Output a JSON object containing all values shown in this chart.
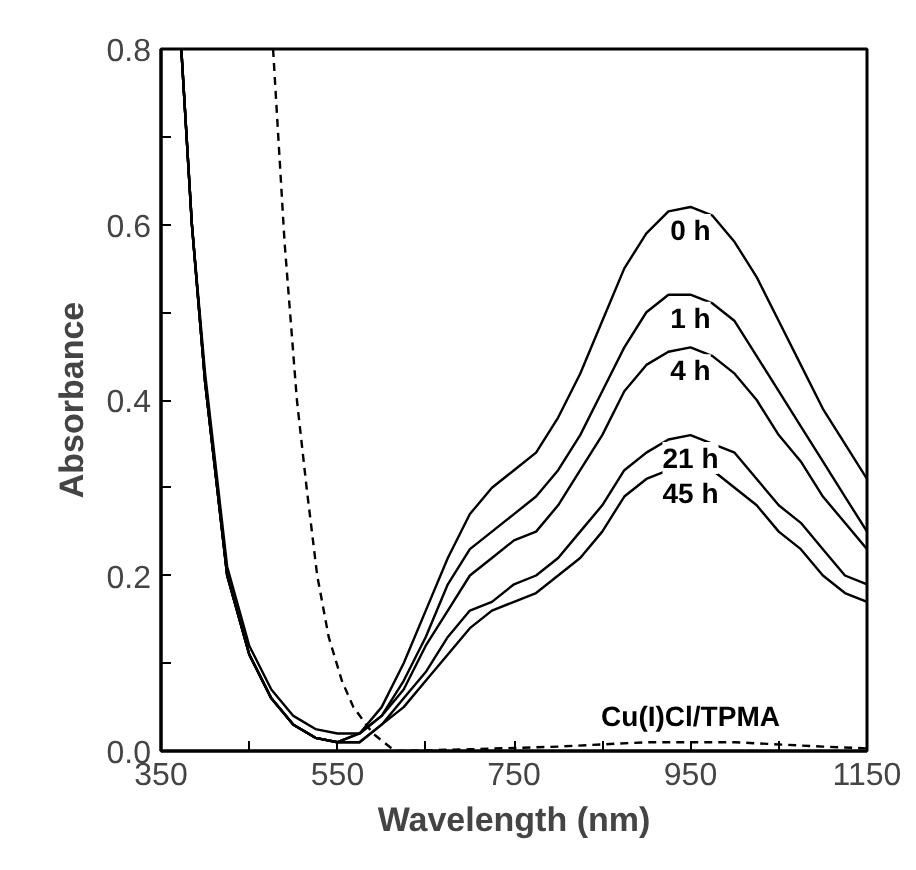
{
  "chart_data": {
    "type": "line",
    "xlabel": "Wavelength (nm)",
    "ylabel": "Absorbance",
    "xlim": [
      350,
      1150
    ],
    "ylim": [
      0,
      0.8
    ],
    "xticks": [
      350,
      {
        "value": 450,
        "label": null
      },
      550,
      {
        "value": 650,
        "label": null
      },
      750,
      {
        "value": 850,
        "label": null
      },
      950,
      {
        "value": 1050,
        "label": null
      },
      1150
    ],
    "yticks": [
      {
        "value": 0,
        "label": "0.0"
      },
      {
        "value": 0.1,
        "label": null
      },
      0.2,
      {
        "value": 0.3,
        "label": null
      },
      0.4,
      {
        "value": 0.5,
        "label": null
      },
      0.6,
      {
        "value": 0.7,
        "label": null
      },
      0.8
    ],
    "grid": false,
    "marker": "none",
    "x": [
      373,
      385,
      400,
      425,
      450,
      475,
      500,
      525,
      550,
      575,
      600,
      625,
      650,
      675,
      700,
      725,
      750,
      775,
      800,
      825,
      850,
      875,
      900,
      925,
      950,
      975,
      1000,
      1025,
      1050,
      1075,
      1100,
      1125,
      1150
    ],
    "series": [
      {
        "name": "0 h",
        "color": "#000000",
        "line_style": "solid",
        "values": [
          0.8,
          0.6,
          0.43,
          0.21,
          0.12,
          0.07,
          0.04,
          0.025,
          0.02,
          0.02,
          0.05,
          0.1,
          0.16,
          0.22,
          0.27,
          0.3,
          0.32,
          0.34,
          0.38,
          0.43,
          0.49,
          0.55,
          0.59,
          0.615,
          0.62,
          0.61,
          0.58,
          0.54,
          0.49,
          0.44,
          0.39,
          0.35,
          0.31
        ]
      },
      {
        "name": "1 h",
        "color": "#000000",
        "line_style": "solid",
        "values": [
          0.8,
          0.6,
          0.42,
          0.2,
          0.11,
          0.06,
          0.03,
          0.015,
          0.01,
          0.02,
          0.04,
          0.08,
          0.13,
          0.19,
          0.23,
          0.25,
          0.27,
          0.29,
          0.32,
          0.36,
          0.41,
          0.46,
          0.5,
          0.52,
          0.52,
          0.51,
          0.49,
          0.45,
          0.41,
          0.37,
          0.33,
          0.29,
          0.25
        ]
      },
      {
        "name": "4 h",
        "color": "#000000",
        "line_style": "solid",
        "values": [
          0.8,
          0.6,
          0.42,
          0.2,
          0.11,
          0.06,
          0.03,
          0.015,
          0.01,
          0.02,
          0.04,
          0.07,
          0.12,
          0.16,
          0.2,
          0.22,
          0.24,
          0.25,
          0.28,
          0.32,
          0.36,
          0.41,
          0.44,
          0.455,
          0.46,
          0.45,
          0.43,
          0.4,
          0.36,
          0.33,
          0.29,
          0.26,
          0.23
        ]
      },
      {
        "name": "21 h",
        "color": "#000000",
        "line_style": "solid",
        "values": [
          0.8,
          0.6,
          0.42,
          0.2,
          0.11,
          0.06,
          0.03,
          0.015,
          0.01,
          0.01,
          0.03,
          0.06,
          0.09,
          0.13,
          0.16,
          0.17,
          0.19,
          0.2,
          0.22,
          0.25,
          0.28,
          0.32,
          0.34,
          0.355,
          0.36,
          0.35,
          0.34,
          0.31,
          0.28,
          0.26,
          0.23,
          0.2,
          0.19
        ]
      },
      {
        "name": "45 h",
        "color": "#000000",
        "line_style": "solid",
        "values": [
          0.8,
          0.6,
          0.42,
          0.2,
          0.11,
          0.06,
          0.03,
          0.015,
          0.01,
          0.01,
          0.03,
          0.05,
          0.08,
          0.11,
          0.14,
          0.16,
          0.17,
          0.18,
          0.2,
          0.22,
          0.25,
          0.29,
          0.31,
          0.32,
          0.32,
          0.32,
          0.3,
          0.28,
          0.25,
          0.23,
          0.2,
          0.18,
          0.17
        ]
      },
      {
        "name": "Cu(I)Cl/TPMA",
        "color": "#000000",
        "line_style": "dashed",
        "x": [
          477,
          490,
          504,
          515,
          527,
          540,
          555,
          568,
          590,
          615,
          700,
          800,
          900,
          950,
          1000,
          1100,
          1150
        ],
        "values": [
          0.8,
          0.58,
          0.4,
          0.3,
          0.2,
          0.13,
          0.08,
          0.05,
          0.02,
          0,
          0.002,
          0.005,
          0.01,
          0.01,
          0.01,
          0.005,
          0.003
        ]
      }
    ]
  }
}
